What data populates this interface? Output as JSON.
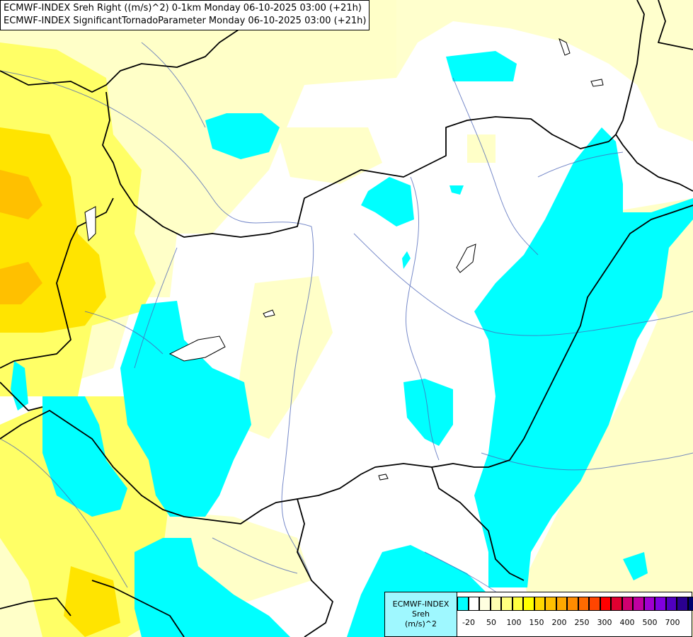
{
  "title": {
    "line1": "ECMWF-INDEX Sreh Right ((m/s)^2) 0-1km Monday 06-10-2025 03:00 (+21h)",
    "line2": "ECMWF-INDEX SignificantTornadoParameter Monday 06-10-2025 03:00 (+21h)"
  },
  "legend": {
    "label_model": "ECMWF-INDEX",
    "label_param": "Sreh",
    "label_unit": "(m/s)^2",
    "swatch_colors": [
      "#00ffff",
      "#ffffff",
      "#ffffe0",
      "#ffffb0",
      "#ffff80",
      "#ffff40",
      "#ffff00",
      "#ffd700",
      "#ffc000",
      "#ffa800",
      "#ff8c00",
      "#ff6a00",
      "#ff4500",
      "#ff0000",
      "#e00030",
      "#d00070",
      "#c000a0",
      "#a000d0",
      "#8000e0",
      "#5000c0",
      "#2a0090",
      "#00006e"
    ],
    "ticks": [
      "-20",
      "50",
      "100",
      "150",
      "200",
      "250",
      "300",
      "400",
      "500",
      "700"
    ]
  }
}
